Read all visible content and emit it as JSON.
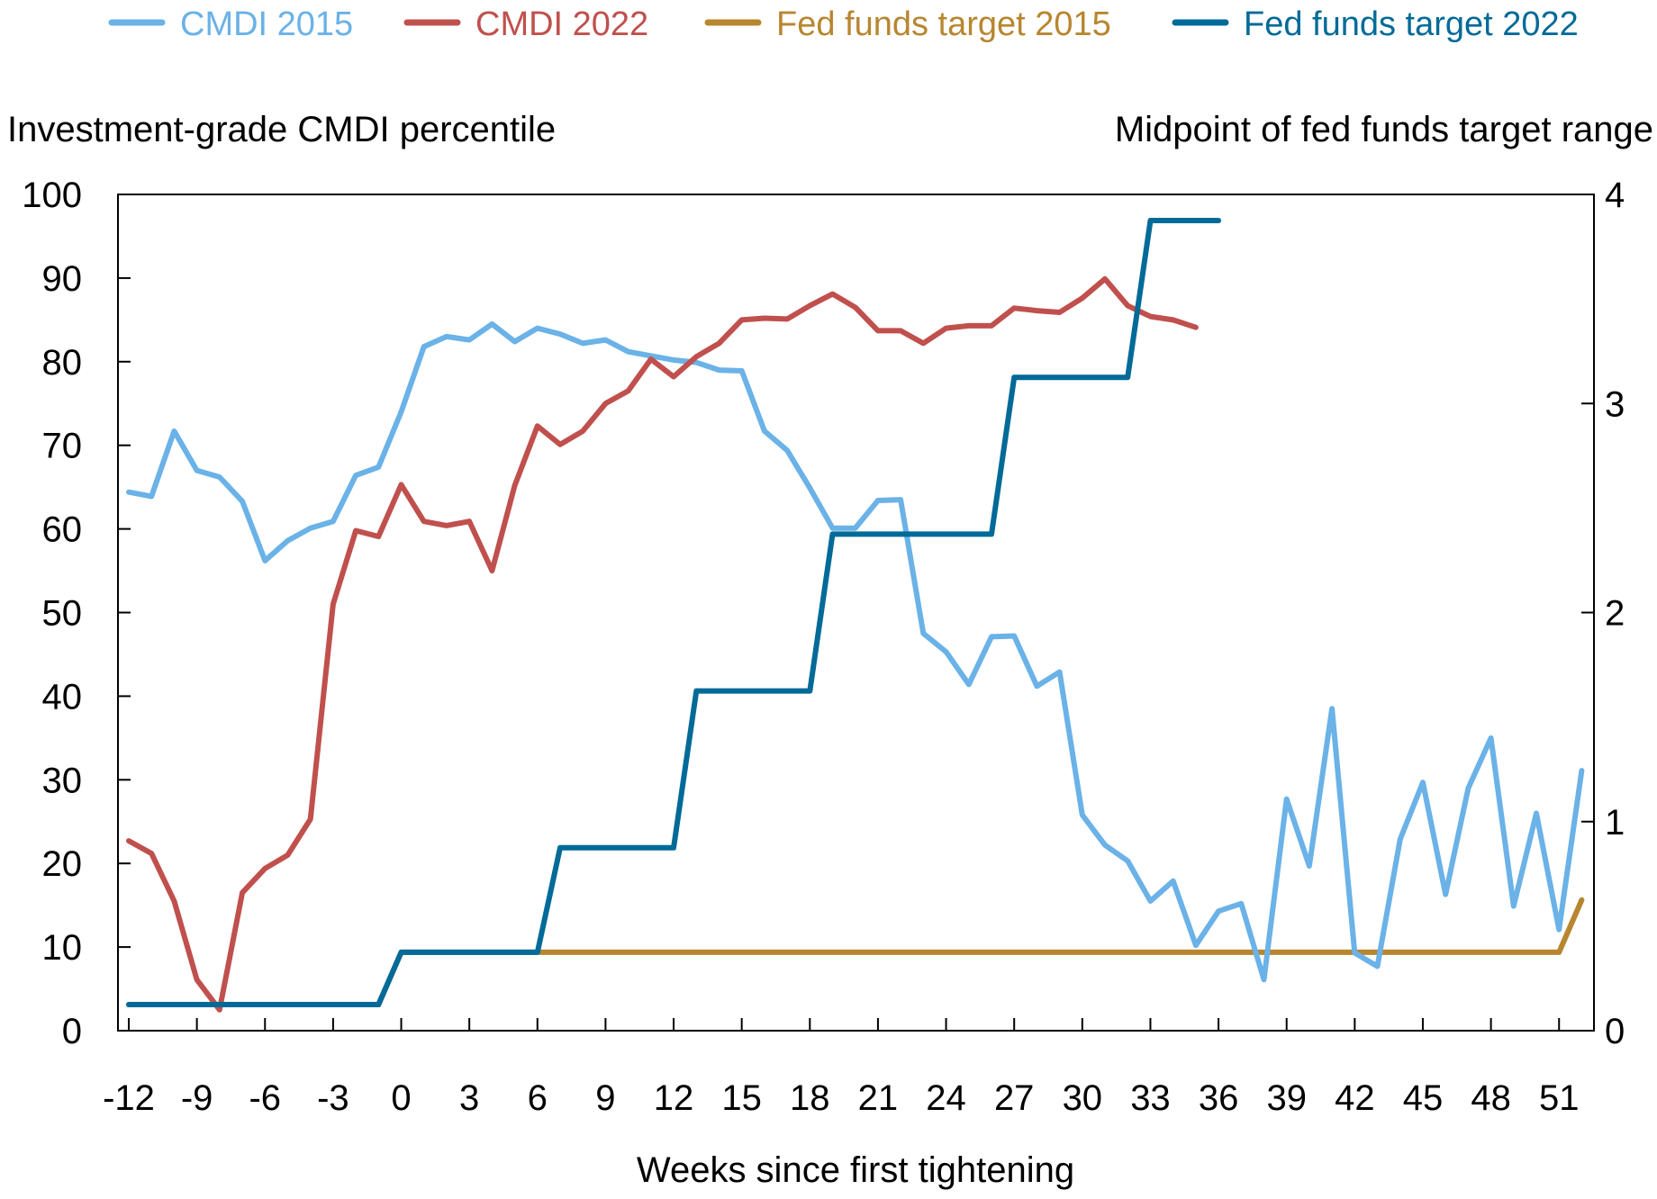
{
  "chart_data": {
    "type": "line",
    "title": "",
    "xlabel": "Weeks since first tightening",
    "ylabel_left": "Investment-grade CMDI percentile",
    "ylabel_right": "Midpoint of fed funds target range",
    "xlim": [
      -12,
      52
    ],
    "ylim_left": [
      0,
      100
    ],
    "ylim_right": [
      0,
      4
    ],
    "x_ticks": [
      -12,
      -9,
      -6,
      -3,
      0,
      3,
      6,
      9,
      12,
      15,
      18,
      21,
      24,
      27,
      30,
      33,
      36,
      39,
      42,
      45,
      48,
      51
    ],
    "y_ticks_left": [
      0,
      10,
      20,
      30,
      40,
      50,
      60,
      70,
      80,
      90,
      100
    ],
    "y_ticks_right": [
      0,
      1,
      2,
      3,
      4
    ],
    "grid": false,
    "legend_position": "top",
    "series": [
      {
        "name": "CMDI 2015",
        "axis": "left",
        "color": "#6AB2E7",
        "x_start": -12,
        "values": [
          64.4,
          63.9,
          71.7,
          67.0,
          66.2,
          63.3,
          56.2,
          58.6,
          60.1,
          60.9,
          66.4,
          67.4,
          74.0,
          81.8,
          83.0,
          82.6,
          84.5,
          82.4,
          84.0,
          83.3,
          82.2,
          82.6,
          81.2,
          80.7,
          80.2,
          79.9,
          79.0,
          78.9,
          71.7,
          69.4,
          64.9,
          60.1,
          60.1,
          63.4,
          63.5,
          47.5,
          45.3,
          41.4,
          47.1,
          47.2,
          41.2,
          42.9,
          25.8,
          22.2,
          20.3,
          15.5,
          17.9,
          10.2,
          14.3,
          15.2,
          6.1,
          27.7,
          19.7,
          38.5,
          9.3,
          7.7,
          22.9,
          29.7,
          16.3,
          29.0,
          35.0,
          14.9,
          26.0,
          12.1,
          31.1
        ]
      },
      {
        "name": "CMDI 2022",
        "axis": "left",
        "color": "#C0504D",
        "x_start": -12,
        "values": [
          22.7,
          21.2,
          15.5,
          6.1,
          2.5,
          16.5,
          19.4,
          21.0,
          25.3,
          51.0,
          59.8,
          59.1,
          65.3,
          60.9,
          60.4,
          60.9,
          55.0,
          65.2,
          72.3,
          70.1,
          71.7,
          75.0,
          76.5,
          80.3,
          78.2,
          80.6,
          82.2,
          85.0,
          85.2,
          85.1,
          86.7,
          88.1,
          86.5,
          83.7,
          83.7,
          82.2,
          84.0,
          84.3,
          84.3,
          86.4,
          86.1,
          85.9,
          87.6,
          89.9,
          86.7,
          85.4,
          85.0,
          84.1
        ]
      },
      {
        "name": "Fed funds target 2015",
        "axis": "right",
        "color": "#B8862F",
        "x_start": -12,
        "values": [
          0.125,
          0.125,
          0.125,
          0.125,
          0.125,
          0.125,
          0.125,
          0.125,
          0.125,
          0.125,
          0.125,
          0.125,
          0.375,
          0.375,
          0.375,
          0.375,
          0.375,
          0.375,
          0.375,
          0.375,
          0.375,
          0.375,
          0.375,
          0.375,
          0.375,
          0.375,
          0.375,
          0.375,
          0.375,
          0.375,
          0.375,
          0.375,
          0.375,
          0.375,
          0.375,
          0.375,
          0.375,
          0.375,
          0.375,
          0.375,
          0.375,
          0.375,
          0.375,
          0.375,
          0.375,
          0.375,
          0.375,
          0.375,
          0.375,
          0.375,
          0.375,
          0.375,
          0.375,
          0.375,
          0.375,
          0.375,
          0.375,
          0.375,
          0.375,
          0.375,
          0.375,
          0.375,
          0.375,
          0.375,
          0.625
        ]
      },
      {
        "name": "Fed funds target 2022",
        "axis": "right",
        "color": "#006A98",
        "x_start": -12,
        "values": [
          0.125,
          0.125,
          0.125,
          0.125,
          0.125,
          0.125,
          0.125,
          0.125,
          0.125,
          0.125,
          0.125,
          0.125,
          0.375,
          0.375,
          0.375,
          0.375,
          0.375,
          0.375,
          0.375,
          0.875,
          0.875,
          0.875,
          0.875,
          0.875,
          0.875,
          1.625,
          1.625,
          1.625,
          1.625,
          1.625,
          1.625,
          2.375,
          2.375,
          2.375,
          2.375,
          2.375,
          2.375,
          2.375,
          2.375,
          3.125,
          3.125,
          3.125,
          3.125,
          3.125,
          3.125,
          3.875,
          3.875,
          3.875,
          3.875
        ]
      }
    ]
  }
}
